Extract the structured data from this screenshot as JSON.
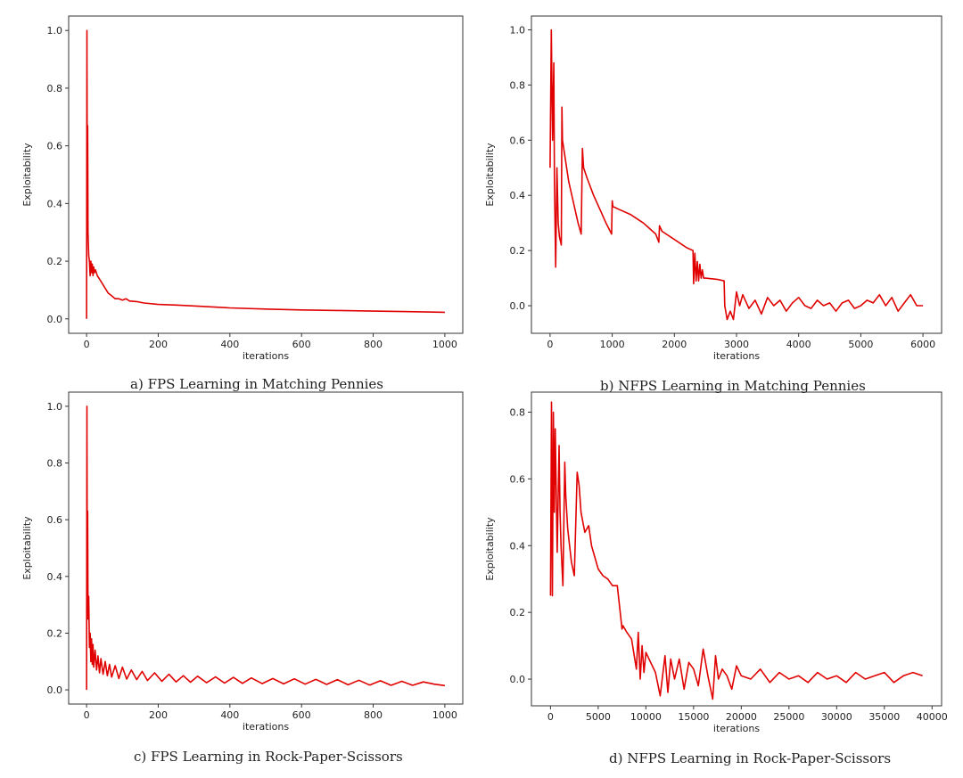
{
  "figure": {
    "captions": [
      "a) FPS Learning in Matching Pennies",
      "b) NFPS Learning in Matching Pennies",
      "c) FPS Learning in Rock-Paper-Scissors",
      "d) NFPS Learning in Rock-Paper-Scissors"
    ]
  },
  "colors": {
    "line": "#e00000",
    "axis": "#333333"
  },
  "chart_data": [
    {
      "type": "line",
      "title": "",
      "caption": "a) FPS Learning in Matching Pennies",
      "xlabel": "iterations",
      "ylabel": "Exploitability",
      "xlim": [
        -50,
        1050
      ],
      "ylim": [
        -0.05,
        1.05
      ],
      "xticks": [
        0,
        200,
        400,
        600,
        800,
        1000
      ],
      "yticks": [
        0.0,
        0.2,
        0.4,
        0.6,
        0.8,
        1.0
      ],
      "ytick_labels": [
        "0.0",
        "0.2",
        "0.4",
        "0.6",
        "0.8",
        "1.0"
      ],
      "series": [
        {
          "name": "exploitability",
          "x": [
            0,
            1,
            2,
            3,
            4,
            6,
            8,
            10,
            12,
            14,
            16,
            18,
            20,
            22,
            25,
            30,
            35,
            40,
            50,
            60,
            70,
            80,
            90,
            100,
            110,
            120,
            140,
            160,
            200,
            250,
            300,
            400,
            500,
            600,
            700,
            800,
            900,
            1000
          ],
          "y": [
            0.0,
            1.0,
            0.35,
            0.67,
            0.3,
            0.22,
            0.2,
            0.15,
            0.2,
            0.16,
            0.19,
            0.15,
            0.18,
            0.16,
            0.17,
            0.15,
            0.14,
            0.13,
            0.11,
            0.09,
            0.08,
            0.07,
            0.07,
            0.065,
            0.07,
            0.062,
            0.06,
            0.055,
            0.05,
            0.048,
            0.045,
            0.038,
            0.034,
            0.031,
            0.029,
            0.027,
            0.025,
            0.023
          ]
        }
      ]
    },
    {
      "type": "line",
      "title": "",
      "caption": "b) NFPS Learning in Matching Pennies",
      "xlabel": "iterations",
      "ylabel": "Exploitability",
      "xlim": [
        -300,
        6300
      ],
      "ylim": [
        -0.1,
        1.05
      ],
      "xticks": [
        0,
        1000,
        2000,
        3000,
        4000,
        5000,
        6000
      ],
      "yticks": [
        0.0,
        0.2,
        0.4,
        0.6,
        0.8,
        1.0
      ],
      "ytick_labels": [
        "0.0",
        "0.2",
        "0.4",
        "0.6",
        "0.8",
        "1.0"
      ],
      "series": [
        {
          "name": "exploitability",
          "x": [
            0,
            20,
            40,
            60,
            70,
            90,
            110,
            130,
            150,
            180,
            190,
            200,
            300,
            400,
            450,
            500,
            520,
            540,
            600,
            700,
            800,
            900,
            990,
            1000,
            1010,
            1100,
            1300,
            1500,
            1700,
            1750,
            1760,
            1800,
            2000,
            2200,
            2300,
            2310,
            2330,
            2350,
            2370,
            2390,
            2410,
            2430,
            2450,
            2470,
            2500,
            2700,
            2800,
            2810,
            2850,
            2900,
            2950,
            3000,
            3050,
            3100,
            3200,
            3300,
            3400,
            3500,
            3600,
            3700,
            3800,
            3900,
            4000,
            4100,
            4200,
            4300,
            4400,
            4500,
            4600,
            4700,
            4800,
            4900,
            5000,
            5100,
            5200,
            5300,
            5400,
            5500,
            5600,
            5700,
            5800,
            5900,
            6000
          ],
          "y": [
            0.5,
            1.0,
            0.6,
            0.88,
            0.45,
            0.14,
            0.5,
            0.3,
            0.25,
            0.22,
            0.72,
            0.6,
            0.45,
            0.35,
            0.3,
            0.26,
            0.57,
            0.5,
            0.46,
            0.4,
            0.35,
            0.3,
            0.26,
            0.38,
            0.36,
            0.35,
            0.33,
            0.3,
            0.26,
            0.23,
            0.29,
            0.27,
            0.24,
            0.21,
            0.2,
            0.08,
            0.19,
            0.09,
            0.16,
            0.09,
            0.15,
            0.1,
            0.13,
            0.1,
            0.1,
            0.095,
            0.09,
            0.0,
            -0.05,
            -0.02,
            -0.05,
            0.05,
            0.0,
            0.04,
            -0.01,
            0.02,
            -0.03,
            0.03,
            0.0,
            0.02,
            -0.02,
            0.01,
            0.03,
            0.0,
            -0.01,
            0.02,
            0.0,
            0.01,
            -0.02,
            0.01,
            0.02,
            -0.01,
            0.0,
            0.02,
            0.01,
            0.04,
            0.0,
            0.03,
            -0.02,
            0.01,
            0.04,
            0.0,
            0.0
          ]
        }
      ]
    },
    {
      "type": "line",
      "title": "",
      "caption": "c) FPS Learning in Rock-Paper-Scissors",
      "xlabel": "iterations",
      "ylabel": "Exploitability",
      "xlim": [
        -50,
        1050
      ],
      "ylim": [
        -0.05,
        1.05
      ],
      "xticks": [
        0,
        200,
        400,
        600,
        800,
        1000
      ],
      "yticks": [
        0.0,
        0.2,
        0.4,
        0.6,
        0.8,
        1.0
      ],
      "ytick_labels": [
        "0.0",
        "0.2",
        "0.4",
        "0.6",
        "0.8",
        "1.0"
      ],
      "series": [
        {
          "name": "exploitability",
          "x": [
            0,
            1,
            2,
            3,
            4,
            6,
            8,
            10,
            12,
            14,
            16,
            18,
            20,
            24,
            28,
            32,
            36,
            40,
            46,
            52,
            58,
            64,
            70,
            80,
            90,
            100,
            112,
            125,
            140,
            155,
            170,
            190,
            210,
            230,
            250,
            270,
            290,
            310,
            335,
            360,
            385,
            410,
            435,
            460,
            490,
            520,
            550,
            580,
            610,
            640,
            670,
            700,
            730,
            760,
            790,
            820,
            850,
            880,
            910,
            940,
            970,
            1000
          ],
          "y": [
            0.0,
            1.0,
            0.3,
            0.63,
            0.25,
            0.33,
            0.15,
            0.2,
            0.1,
            0.18,
            0.09,
            0.16,
            0.08,
            0.14,
            0.07,
            0.12,
            0.06,
            0.11,
            0.055,
            0.1,
            0.05,
            0.09,
            0.045,
            0.085,
            0.04,
            0.08,
            0.038,
            0.07,
            0.036,
            0.065,
            0.033,
            0.06,
            0.03,
            0.055,
            0.028,
            0.05,
            0.027,
            0.048,
            0.025,
            0.046,
            0.024,
            0.044,
            0.023,
            0.042,
            0.022,
            0.04,
            0.021,
            0.039,
            0.02,
            0.037,
            0.019,
            0.036,
            0.018,
            0.034,
            0.017,
            0.032,
            0.016,
            0.03,
            0.016,
            0.028,
            0.02,
            0.015
          ]
        }
      ]
    },
    {
      "type": "line",
      "title": "",
      "caption": "d) NFPS Learning in Rock-Paper-Scissors",
      "xlabel": "iterations",
      "ylabel": "Exploitability",
      "xlim": [
        -2000,
        41000
      ],
      "ylim": [
        -0.08,
        0.86
      ],
      "xticks": [
        0,
        5000,
        10000,
        15000,
        20000,
        25000,
        30000,
        35000,
        40000
      ],
      "yticks": [
        0.0,
        0.2,
        0.4,
        0.6,
        0.8
      ],
      "ytick_labels": [
        "0.0",
        "0.2",
        "0.4",
        "0.6",
        "0.8"
      ],
      "series": [
        {
          "name": "exploitability",
          "x": [
            0,
            100,
            200,
            300,
            400,
            500,
            700,
            900,
            1000,
            1100,
            1300,
            1500,
            1600,
            1800,
            2000,
            2200,
            2500,
            2800,
            3000,
            3200,
            3600,
            4000,
            4300,
            4600,
            5000,
            5500,
            6000,
            6500,
            7000,
            7500,
            7600,
            8000,
            8500,
            9000,
            9200,
            9400,
            9600,
            9800,
            10000,
            10500,
            11000,
            11500,
            12000,
            12300,
            12600,
            13000,
            13500,
            14000,
            14500,
            15000,
            15500,
            16000,
            16500,
            17000,
            17300,
            17600,
            18000,
            18500,
            19000,
            19500,
            20000,
            21000,
            22000,
            23000,
            24000,
            25000,
            26000,
            27000,
            28000,
            29000,
            30000,
            31000,
            32000,
            33000,
            34000,
            35000,
            36000,
            37000,
            38000,
            39000
          ],
          "y": [
            0.25,
            0.83,
            0.25,
            0.8,
            0.5,
            0.75,
            0.38,
            0.7,
            0.5,
            0.4,
            0.28,
            0.65,
            0.55,
            0.45,
            0.4,
            0.35,
            0.31,
            0.62,
            0.58,
            0.5,
            0.44,
            0.46,
            0.4,
            0.37,
            0.33,
            0.31,
            0.3,
            0.28,
            0.28,
            0.15,
            0.16,
            0.14,
            0.12,
            0.03,
            0.14,
            0.0,
            0.1,
            0.02,
            0.08,
            0.05,
            0.02,
            -0.05,
            0.07,
            -0.04,
            0.06,
            0.0,
            0.06,
            -0.03,
            0.05,
            0.03,
            -0.02,
            0.09,
            0.01,
            -0.06,
            0.07,
            0.0,
            0.03,
            0.01,
            -0.03,
            0.04,
            0.01,
            0.0,
            0.03,
            -0.01,
            0.02,
            0.0,
            0.01,
            -0.01,
            0.02,
            0.0,
            0.01,
            -0.01,
            0.02,
            0.0,
            0.01,
            0.02,
            -0.01,
            0.01,
            0.02,
            0.01
          ]
        }
      ]
    }
  ]
}
